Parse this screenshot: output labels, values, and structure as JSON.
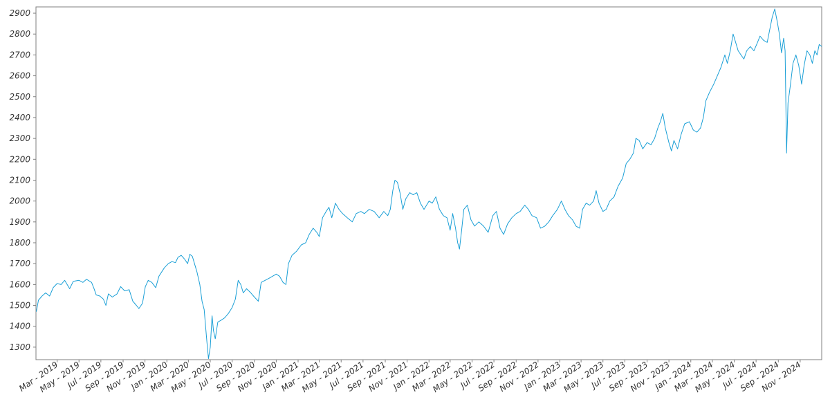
{
  "chart_data": {
    "type": "line",
    "title": "",
    "xlabel": "",
    "ylabel": "",
    "ylim": [
      1240,
      2930
    ],
    "xlim": [
      "2019-01-01",
      "2024-12-31"
    ],
    "y_ticks": [
      1300,
      1400,
      1500,
      1600,
      1700,
      1800,
      1900,
      2000,
      2100,
      2200,
      2300,
      2400,
      2500,
      2600,
      2700,
      2800,
      2900
    ],
    "x_ticks": [
      {
        "date": "2019-03-01",
        "label": "Mar - 2019"
      },
      {
        "date": "2019-05-01",
        "label": "May - 2019"
      },
      {
        "date": "2019-07-01",
        "label": "Jul - 2019"
      },
      {
        "date": "2019-09-01",
        "label": "Sep - 2019"
      },
      {
        "date": "2019-11-01",
        "label": "Nov - 2019"
      },
      {
        "date": "2020-01-01",
        "label": "Jan - 2020"
      },
      {
        "date": "2020-03-01",
        "label": "Mar - 2020"
      },
      {
        "date": "2020-05-01",
        "label": "May - 2020"
      },
      {
        "date": "2020-07-01",
        "label": "Jul - 2020"
      },
      {
        "date": "2020-09-01",
        "label": "Sep - 2020"
      },
      {
        "date": "2020-11-01",
        "label": "Nov - 2020"
      },
      {
        "date": "2021-01-01",
        "label": "Jan - 2021"
      },
      {
        "date": "2021-03-01",
        "label": "Mar - 2021"
      },
      {
        "date": "2021-05-01",
        "label": "May - 2021"
      },
      {
        "date": "2021-07-01",
        "label": "Jul - 2021"
      },
      {
        "date": "2021-09-01",
        "label": "Sep - 2021"
      },
      {
        "date": "2021-11-01",
        "label": "Nov - 2021"
      },
      {
        "date": "2022-01-01",
        "label": "Jan - 2022"
      },
      {
        "date": "2022-03-01",
        "label": "Mar - 2022"
      },
      {
        "date": "2022-05-01",
        "label": "May - 2022"
      },
      {
        "date": "2022-07-01",
        "label": "Jul - 2022"
      },
      {
        "date": "2022-09-01",
        "label": "Sep - 2022"
      },
      {
        "date": "2022-11-01",
        "label": "Nov - 2022"
      },
      {
        "date": "2023-01-01",
        "label": "Jan - 2023"
      },
      {
        "date": "2023-03-01",
        "label": "Mar - 2023"
      },
      {
        "date": "2023-05-01",
        "label": "May - 2023"
      },
      {
        "date": "2023-07-01",
        "label": "Jul - 2023"
      },
      {
        "date": "2023-09-01",
        "label": "Sep - 2023"
      },
      {
        "date": "2023-11-01",
        "label": "Nov - 2023"
      },
      {
        "date": "2024-01-01",
        "label": "Jan - 2024"
      },
      {
        "date": "2024-03-01",
        "label": "Mar - 2024"
      },
      {
        "date": "2024-05-01",
        "label": "May - 2024"
      },
      {
        "date": "2024-07-01",
        "label": "Jul - 2024"
      },
      {
        "date": "2024-09-01",
        "label": "Sep - 2024"
      },
      {
        "date": "2024-11-01",
        "label": "Nov - 2024"
      }
    ],
    "grid": false,
    "legend": "none",
    "line_color": "#1a9fd6",
    "series": [
      {
        "points": [
          [
            "2019-01-02",
            1470
          ],
          [
            "2019-01-08",
            1525
          ],
          [
            "2019-01-18",
            1545
          ],
          [
            "2019-01-28",
            1560
          ],
          [
            "2019-02-08",
            1545
          ],
          [
            "2019-02-18",
            1585
          ],
          [
            "2019-03-01",
            1605
          ],
          [
            "2019-03-12",
            1600
          ],
          [
            "2019-03-22",
            1620
          ],
          [
            "2019-04-05",
            1580
          ],
          [
            "2019-04-15",
            1615
          ],
          [
            "2019-05-01",
            1620
          ],
          [
            "2019-05-12",
            1610
          ],
          [
            "2019-05-22",
            1625
          ],
          [
            "2019-06-05",
            1610
          ],
          [
            "2019-06-12",
            1580
          ],
          [
            "2019-06-18",
            1550
          ],
          [
            "2019-06-28",
            1545
          ],
          [
            "2019-07-08",
            1530
          ],
          [
            "2019-07-15",
            1500
          ],
          [
            "2019-07-22",
            1555
          ],
          [
            "2019-08-02",
            1540
          ],
          [
            "2019-08-15",
            1555
          ],
          [
            "2019-08-25",
            1590
          ],
          [
            "2019-09-05",
            1570
          ],
          [
            "2019-09-18",
            1575
          ],
          [
            "2019-09-28",
            1520
          ],
          [
            "2019-10-08",
            1500
          ],
          [
            "2019-10-15",
            1485
          ],
          [
            "2019-10-25",
            1510
          ],
          [
            "2019-11-02",
            1590
          ],
          [
            "2019-11-10",
            1620
          ],
          [
            "2019-11-20",
            1610
          ],
          [
            "2019-12-01",
            1585
          ],
          [
            "2019-12-10",
            1640
          ],
          [
            "2019-12-25",
            1680
          ],
          [
            "2020-01-05",
            1700
          ],
          [
            "2020-01-15",
            1710
          ],
          [
            "2020-01-25",
            1705
          ],
          [
            "2020-02-01",
            1730
          ],
          [
            "2020-02-10",
            1740
          ],
          [
            "2020-02-20",
            1720
          ],
          [
            "2020-02-28",
            1700
          ],
          [
            "2020-03-05",
            1745
          ],
          [
            "2020-03-12",
            1735
          ],
          [
            "2020-03-18",
            1700
          ],
          [
            "2020-03-25",
            1660
          ],
          [
            "2020-04-02",
            1600
          ],
          [
            "2020-04-08",
            1520
          ],
          [
            "2020-04-14",
            1480
          ],
          [
            "2020-04-18",
            1400
          ],
          [
            "2020-04-22",
            1320
          ],
          [
            "2020-04-26",
            1245
          ],
          [
            "2020-05-01",
            1300
          ],
          [
            "2020-05-06",
            1450
          ],
          [
            "2020-05-10",
            1380
          ],
          [
            "2020-05-15",
            1340
          ],
          [
            "2020-05-22",
            1420
          ],
          [
            "2020-06-01",
            1430
          ],
          [
            "2020-06-10",
            1440
          ],
          [
            "2020-06-20",
            1460
          ],
          [
            "2020-07-01",
            1490
          ],
          [
            "2020-07-10",
            1530
          ],
          [
            "2020-07-18",
            1620
          ],
          [
            "2020-07-25",
            1600
          ],
          [
            "2020-08-01",
            1560
          ],
          [
            "2020-08-10",
            1580
          ],
          [
            "2020-08-22",
            1560
          ],
          [
            "2020-09-01",
            1540
          ],
          [
            "2020-09-12",
            1520
          ],
          [
            "2020-09-20",
            1610
          ],
          [
            "2020-10-01",
            1620
          ],
          [
            "2020-10-12",
            1630
          ],
          [
            "2020-10-22",
            1640
          ],
          [
            "2020-11-01",
            1650
          ],
          [
            "2020-11-10",
            1640
          ],
          [
            "2020-11-20",
            1610
          ],
          [
            "2020-11-28",
            1600
          ],
          [
            "2020-12-05",
            1700
          ],
          [
            "2020-12-15",
            1740
          ],
          [
            "2020-12-28",
            1760
          ],
          [
            "2021-01-10",
            1790
          ],
          [
            "2021-01-22",
            1800
          ],
          [
            "2021-02-01",
            1840
          ],
          [
            "2021-02-12",
            1870
          ],
          [
            "2021-02-22",
            1850
          ],
          [
            "2021-03-01",
            1830
          ],
          [
            "2021-03-10",
            1920
          ],
          [
            "2021-03-20",
            1950
          ],
          [
            "2021-03-28",
            1970
          ],
          [
            "2021-04-05",
            1920
          ],
          [
            "2021-04-15",
            1990
          ],
          [
            "2021-04-25",
            1960
          ],
          [
            "2021-05-05",
            1940
          ],
          [
            "2021-05-18",
            1920
          ],
          [
            "2021-06-01",
            1900
          ],
          [
            "2021-06-12",
            1940
          ],
          [
            "2021-06-25",
            1950
          ],
          [
            "2021-07-05",
            1940
          ],
          [
            "2021-07-18",
            1960
          ],
          [
            "2021-08-01",
            1950
          ],
          [
            "2021-08-15",
            1920
          ],
          [
            "2021-08-28",
            1950
          ],
          [
            "2021-09-08",
            1930
          ],
          [
            "2021-09-15",
            1960
          ],
          [
            "2021-09-22",
            2050
          ],
          [
            "2021-09-28",
            2100
          ],
          [
            "2021-10-05",
            2090
          ],
          [
            "2021-10-12",
            2040
          ],
          [
            "2021-10-20",
            1960
          ],
          [
            "2021-10-28",
            2010
          ],
          [
            "2021-11-08",
            2040
          ],
          [
            "2021-11-18",
            2030
          ],
          [
            "2021-11-28",
            2040
          ],
          [
            "2021-12-08",
            1990
          ],
          [
            "2021-12-18",
            1960
          ],
          [
            "2022-01-01",
            2000
          ],
          [
            "2022-01-10",
            1990
          ],
          [
            "2022-01-20",
            2020
          ],
          [
            "2022-01-30",
            1960
          ],
          [
            "2022-02-10",
            1930
          ],
          [
            "2022-02-20",
            1920
          ],
          [
            "2022-03-01",
            1860
          ],
          [
            "2022-03-08",
            1940
          ],
          [
            "2022-03-16",
            1870
          ],
          [
            "2022-03-22",
            1800
          ],
          [
            "2022-03-27",
            1770
          ],
          [
            "2022-04-02",
            1860
          ],
          [
            "2022-04-08",
            1960
          ],
          [
            "2022-04-18",
            1980
          ],
          [
            "2022-04-28",
            1910
          ],
          [
            "2022-05-08",
            1880
          ],
          [
            "2022-05-20",
            1900
          ],
          [
            "2022-06-02",
            1880
          ],
          [
            "2022-06-15",
            1850
          ],
          [
            "2022-06-28",
            1930
          ],
          [
            "2022-07-08",
            1950
          ],
          [
            "2022-07-18",
            1870
          ],
          [
            "2022-07-28",
            1840
          ],
          [
            "2022-08-08",
            1890
          ],
          [
            "2022-08-20",
            1920
          ],
          [
            "2022-09-01",
            1940
          ],
          [
            "2022-09-12",
            1950
          ],
          [
            "2022-09-25",
            1980
          ],
          [
            "2022-10-05",
            1960
          ],
          [
            "2022-10-15",
            1930
          ],
          [
            "2022-10-28",
            1920
          ],
          [
            "2022-11-08",
            1870
          ],
          [
            "2022-11-20",
            1880
          ],
          [
            "2022-12-01",
            1900
          ],
          [
            "2022-12-12",
            1930
          ],
          [
            "2022-12-25",
            1960
          ],
          [
            "2023-01-05",
            2000
          ],
          [
            "2023-01-15",
            1960
          ],
          [
            "2023-01-25",
            1930
          ],
          [
            "2023-02-05",
            1910
          ],
          [
            "2023-02-15",
            1880
          ],
          [
            "2023-02-25",
            1870
          ],
          [
            "2023-03-05",
            1960
          ],
          [
            "2023-03-15",
            1990
          ],
          [
            "2023-03-25",
            1980
          ],
          [
            "2023-04-05",
            2000
          ],
          [
            "2023-04-12",
            2050
          ],
          [
            "2023-04-20",
            1990
          ],
          [
            "2023-05-01",
            1950
          ],
          [
            "2023-05-10",
            1960
          ],
          [
            "2023-05-20",
            2000
          ],
          [
            "2023-06-01",
            2020
          ],
          [
            "2023-06-12",
            2070
          ],
          [
            "2023-06-25",
            2110
          ],
          [
            "2023-07-05",
            2180
          ],
          [
            "2023-07-15",
            2200
          ],
          [
            "2023-07-25",
            2230
          ],
          [
            "2023-08-01",
            2300
          ],
          [
            "2023-08-10",
            2290
          ],
          [
            "2023-08-20",
            2250
          ],
          [
            "2023-09-01",
            2280
          ],
          [
            "2023-09-12",
            2270
          ],
          [
            "2023-09-22",
            2300
          ],
          [
            "2023-10-01",
            2350
          ],
          [
            "2023-10-08",
            2380
          ],
          [
            "2023-10-15",
            2420
          ],
          [
            "2023-10-22",
            2350
          ],
          [
            "2023-11-01",
            2280
          ],
          [
            "2023-11-08",
            2240
          ],
          [
            "2023-11-15",
            2290
          ],
          [
            "2023-11-25",
            2250
          ],
          [
            "2023-12-05",
            2320
          ],
          [
            "2023-12-15",
            2370
          ],
          [
            "2023-12-28",
            2380
          ],
          [
            "2024-01-08",
            2340
          ],
          [
            "2024-01-18",
            2330
          ],
          [
            "2024-01-28",
            2350
          ],
          [
            "2024-02-05",
            2400
          ],
          [
            "2024-02-12",
            2480
          ],
          [
            "2024-02-22",
            2520
          ],
          [
            "2024-03-05",
            2560
          ],
          [
            "2024-03-15",
            2600
          ],
          [
            "2024-03-25",
            2640
          ],
          [
            "2024-04-05",
            2700
          ],
          [
            "2024-04-12",
            2660
          ],
          [
            "2024-04-20",
            2720
          ],
          [
            "2024-04-28",
            2800
          ],
          [
            "2024-05-05",
            2760
          ],
          [
            "2024-05-12",
            2720
          ],
          [
            "2024-05-20",
            2700
          ],
          [
            "2024-05-28",
            2680
          ],
          [
            "2024-06-05",
            2720
          ],
          [
            "2024-06-15",
            2740
          ],
          [
            "2024-06-25",
            2720
          ],
          [
            "2024-07-05",
            2760
          ],
          [
            "2024-07-12",
            2790
          ],
          [
            "2024-07-22",
            2770
          ],
          [
            "2024-08-01",
            2760
          ],
          [
            "2024-08-08",
            2820
          ],
          [
            "2024-08-15",
            2880
          ],
          [
            "2024-08-22",
            2920
          ],
          [
            "2024-08-29",
            2860
          ],
          [
            "2024-09-04",
            2800
          ],
          [
            "2024-09-10",
            2710
          ],
          [
            "2024-09-16",
            2780
          ],
          [
            "2024-09-20",
            2720
          ],
          [
            "2024-09-24",
            2230
          ],
          [
            "2024-09-28",
            2470
          ],
          [
            "2024-10-05",
            2560
          ],
          [
            "2024-10-12",
            2660
          ],
          [
            "2024-10-20",
            2700
          ],
          [
            "2024-10-28",
            2650
          ],
          [
            "2024-11-05",
            2560
          ],
          [
            "2024-11-12",
            2650
          ],
          [
            "2024-11-20",
            2720
          ],
          [
            "2024-11-28",
            2700
          ],
          [
            "2024-12-05",
            2660
          ],
          [
            "2024-12-12",
            2720
          ],
          [
            "2024-12-18",
            2700
          ],
          [
            "2024-12-24",
            2750
          ],
          [
            "2024-12-31",
            2740
          ]
        ]
      }
    ]
  }
}
